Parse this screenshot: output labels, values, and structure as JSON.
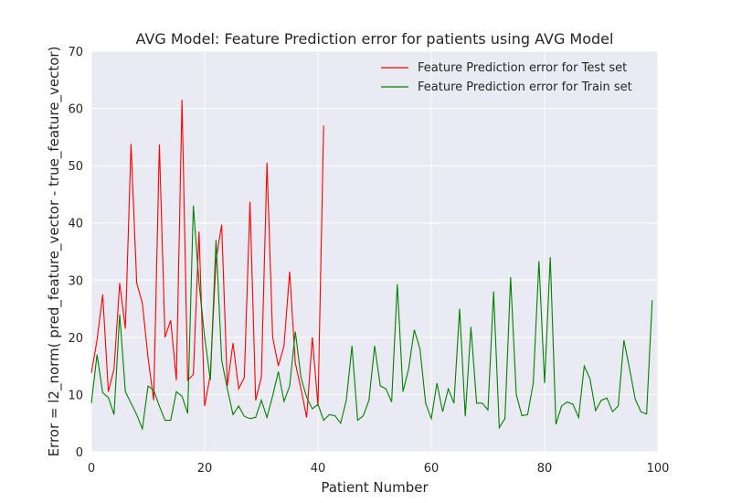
{
  "chart_data": {
    "type": "line",
    "title": "AVG Model: Feature Prediction error for patients using AVG Model",
    "xlabel": "Patient Number",
    "ylabel": "Error = l2_norm( pred_feature_vector - true_feature_vector)",
    "xlim": [
      0,
      100
    ],
    "ylim": [
      0,
      70
    ],
    "xticks": [
      0,
      20,
      40,
      60,
      80,
      100
    ],
    "yticks": [
      0,
      10,
      20,
      30,
      40,
      50,
      60,
      70
    ],
    "grid": true,
    "legend_position": "top-right",
    "background": "#EAEAF2",
    "series": [
      {
        "name": "Feature Prediction error for Test set",
        "color": "#FF0000",
        "x": [
          0,
          1,
          2,
          3,
          4,
          5,
          6,
          7,
          8,
          9,
          10,
          11,
          12,
          13,
          14,
          15,
          16,
          17,
          18,
          19,
          20,
          21,
          22,
          23,
          24,
          25,
          26,
          27,
          28,
          29,
          30,
          31,
          32,
          33,
          34,
          35,
          36,
          37,
          38,
          39,
          40,
          41
        ],
        "y": [
          13.8,
          19.5,
          27.5,
          10.5,
          14.5,
          29.5,
          21.5,
          53.8,
          29.5,
          26.0,
          16.5,
          9.0,
          53.7,
          20.0,
          23.0,
          12.5,
          61.5,
          12.5,
          13.5,
          38.5,
          8.0,
          13.5,
          33.5,
          39.7,
          11.5,
          19.0,
          11.0,
          13.0,
          43.7,
          9.0,
          13.0,
          50.5,
          20.0,
          15.0,
          18.5,
          31.5,
          15.5,
          11.0,
          6.0,
          20.0,
          8.0,
          57.0
        ]
      },
      {
        "name": "Feature Prediction error for Train set",
        "color": "#008000",
        "x": [
          0,
          1,
          2,
          3,
          4,
          5,
          6,
          7,
          8,
          9,
          10,
          11,
          12,
          13,
          14,
          15,
          16,
          17,
          18,
          19,
          20,
          21,
          22,
          23,
          24,
          25,
          26,
          27,
          28,
          29,
          30,
          31,
          32,
          33,
          34,
          35,
          36,
          37,
          38,
          39,
          40,
          41,
          42,
          43,
          44,
          45,
          46,
          47,
          48,
          49,
          50,
          51,
          52,
          53,
          54,
          55,
          56,
          57,
          58,
          59,
          60,
          61,
          62,
          63,
          64,
          65,
          66,
          67,
          68,
          69,
          70,
          71,
          72,
          73,
          74,
          75,
          76,
          77,
          78,
          79,
          80,
          81,
          82,
          83,
          84,
          85,
          86,
          87,
          88,
          89,
          90,
          91,
          92,
          93,
          94,
          95,
          96,
          97,
          98,
          99
        ],
        "y": [
          8.5,
          17.0,
          10.3,
          9.5,
          6.5,
          24.0,
          10.5,
          8.5,
          6.5,
          4.0,
          11.5,
          10.8,
          8.0,
          5.5,
          5.5,
          10.5,
          9.7,
          6.7,
          43.0,
          29.5,
          20.0,
          12.5,
          37.0,
          16.0,
          11.0,
          6.5,
          8.0,
          6.2,
          5.8,
          6.0,
          9.0,
          6.0,
          9.8,
          14.0,
          8.8,
          11.5,
          21.0,
          13.0,
          9.5,
          7.5,
          8.3,
          5.5,
          6.5,
          6.3,
          5.0,
          9.0,
          18.5,
          5.5,
          6.3,
          9.0,
          18.5,
          11.5,
          11.0,
          8.7,
          29.3,
          10.5,
          14.5,
          21.3,
          18.0,
          8.5,
          5.8,
          12.0,
          7.0,
          11.0,
          8.5,
          25.0,
          6.2,
          21.8,
          8.5,
          8.5,
          7.3,
          28.0,
          4.2,
          5.8,
          30.5,
          10.0,
          6.3,
          6.5,
          12.0,
          33.3,
          12.0,
          34.0,
          4.8,
          8.0,
          8.7,
          8.3,
          6.0,
          15.0,
          12.8,
          7.2,
          9.0,
          9.4,
          7.0,
          8.0,
          19.5,
          14.5,
          9.2,
          7.0,
          6.6,
          26.5
        ]
      }
    ]
  }
}
